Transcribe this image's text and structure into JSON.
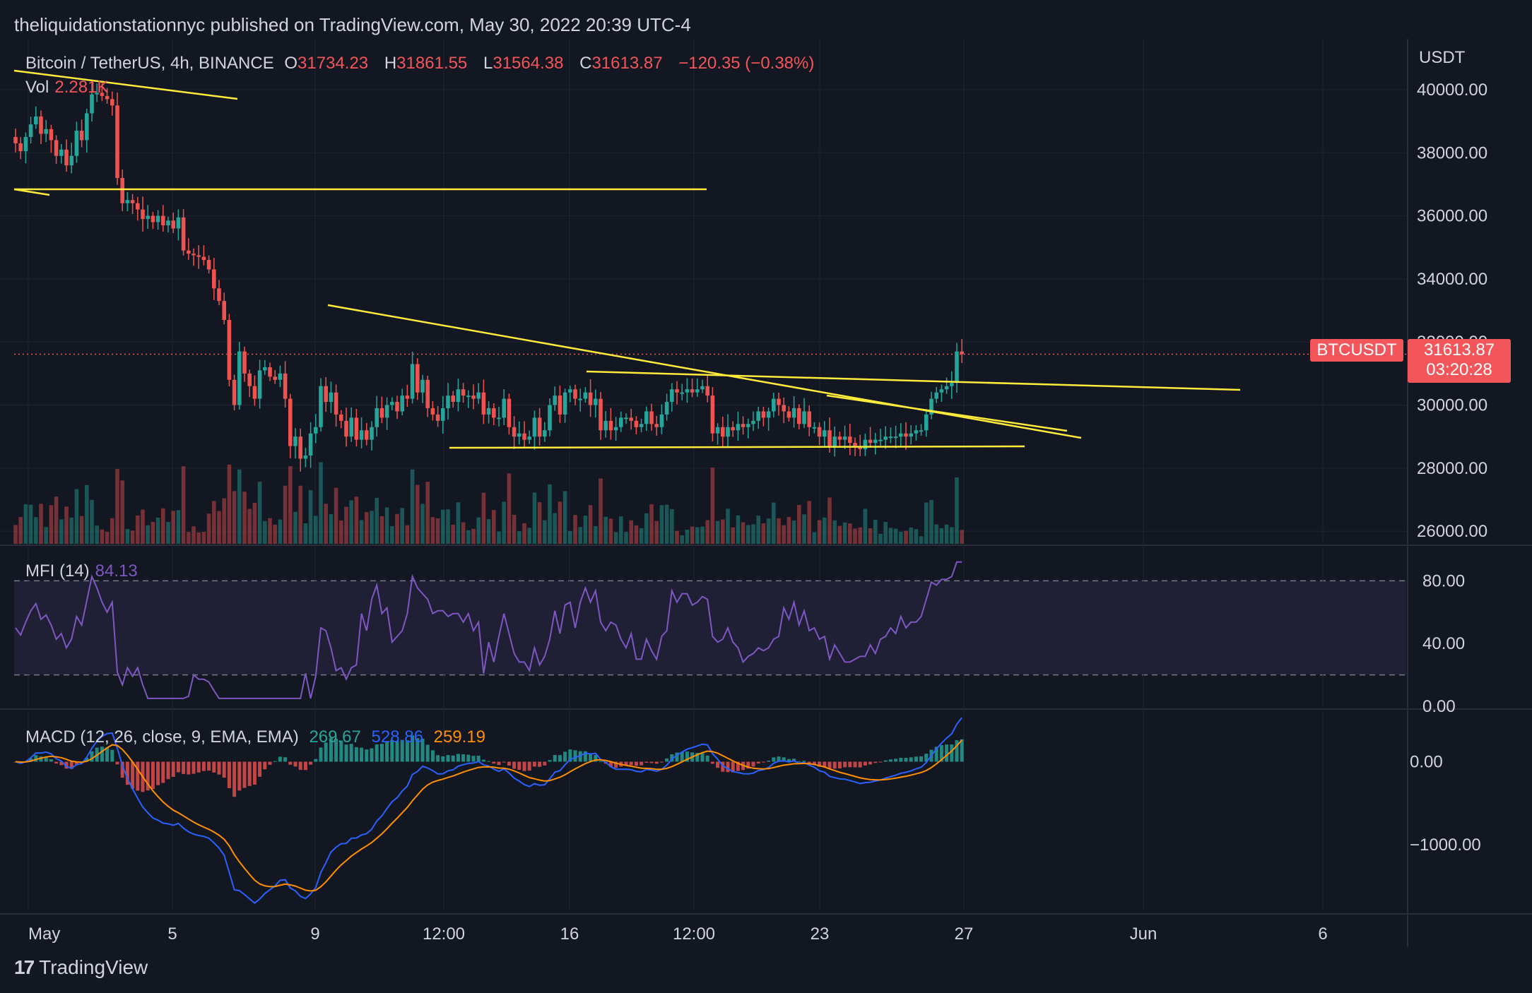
{
  "headline": "theliquidationstationnyc published on TradingView.com, May 30, 2022 20:39 UTC-4",
  "legend": {
    "symbol": "Bitcoin / TetherUS, 4h, BINANCE",
    "o_label": "O",
    "o_value": "31734.23",
    "h_label": "H",
    "h_value": "31861.55",
    "l_label": "L",
    "l_value": "31564.38",
    "c_label": "C",
    "c_value": "31613.87",
    "change": "−120.35 (−0.38%)",
    "vol_label": "Vol",
    "vol_value": "2.281K",
    "mfi_label": "MFI (14)",
    "mfi_value": "84.13",
    "macd_label": "MACD (12, 26, close, 9, EMA, EMA)",
    "macd_hist": "269.67",
    "macd_line": "528.86",
    "macd_signal": "259.19"
  },
  "price_tag": {
    "symbol": "BTCUSDT",
    "price": "31613.87",
    "countdown": "03:20:28"
  },
  "currency": "USDT",
  "brand": "TradingView",
  "colors": {
    "up": "#26a69a",
    "down": "#ef5350",
    "trendline": "#ffeb3b",
    "mfi": "#7e57c2",
    "macd": "#2962ff",
    "signal": "#ff8f00",
    "background": "#131722"
  },
  "chart_data": {
    "type": "candlestick",
    "interval": "4h",
    "price_axis": {
      "ticks": [
        "40000.00",
        "38000.00",
        "36000.00",
        "34000.00",
        "32000.00",
        "30000.00",
        "28000.00",
        "26000.00"
      ],
      "range": [
        25600,
        41500
      ]
    },
    "mfi_axis": {
      "ticks": [
        "80.00",
        "40.00",
        "0.00"
      ],
      "range": [
        0,
        100
      ],
      "bands": [
        80,
        20
      ]
    },
    "macd_axis": {
      "ticks": [
        "0.00",
        "−1000.00"
      ],
      "range": [
        -1800,
        600
      ]
    },
    "time_axis": {
      "ticks": [
        "May",
        "5",
        "9",
        "12:00",
        "16",
        "12:00",
        "23",
        "27",
        "Jun",
        "6"
      ]
    },
    "close": [
      38300,
      38050,
      38500,
      38900,
      39150,
      38600,
      38750,
      38400,
      37900,
      38100,
      37600,
      37900,
      38700,
      38400,
      39250,
      39850,
      39900,
      39800,
      39700,
      39500,
      37200,
      36400,
      36500,
      36400,
      36200,
      35900,
      36000,
      35800,
      36000,
      35700,
      35850,
      35600,
      35950,
      34900,
      34800,
      34750,
      34700,
      34600,
      34300,
      33700,
      33300,
      32700,
      30800,
      30000,
      31700,
      31000,
      30600,
      30200,
      31100,
      31200,
      30900,
      30800,
      31000,
      30200,
      28700,
      29000,
      28300,
      28400,
      29100,
      29300,
      30600,
      30100,
      30400,
      29700,
      29500,
      29000,
      29600,
      28900,
      29200,
      28900,
      29300,
      29900,
      29600,
      30000,
      30100,
      29800,
      30300,
      30200,
      31300,
      30400,
      30800,
      29900,
      29700,
      29500,
      29900,
      30300,
      30100,
      30500,
      30300,
      30300,
      30200,
      30400,
      29700,
      29900,
      29600,
      29600,
      30200,
      29300,
      29000,
      29100,
      28900,
      29000,
      29600,
      29000,
      29200,
      30000,
      30300,
      29700,
      30400,
      30500,
      30200,
      30200,
      30400,
      30000,
      30200,
      29200,
      29500,
      29200,
      29300,
      29600,
      29600,
      29500,
      29300,
      29400,
      29800,
      29400,
      29300,
      29700,
      30100,
      30500,
      30400,
      30400,
      30500,
      30400,
      30500,
      30600,
      30300,
      29100,
      29300,
      29000,
      29300,
      29200,
      29400,
      29300,
      29400,
      29500,
      29800,
      29600,
      29800,
      30200,
      30000,
      29800,
      29600,
      29900,
      29400,
      29800,
      29300,
      29300,
      29000,
      29200,
      28700,
      29000,
      28900,
      29000,
      28800,
      28700,
      28600,
      28900,
      28800,
      28900,
      28900,
      29000,
      29000,
      29000,
      29100,
      29000,
      29100,
      29200,
      29200,
      29700,
      30200,
      30400,
      30500,
      30600,
      30700,
      31700,
      31613
    ]
  }
}
